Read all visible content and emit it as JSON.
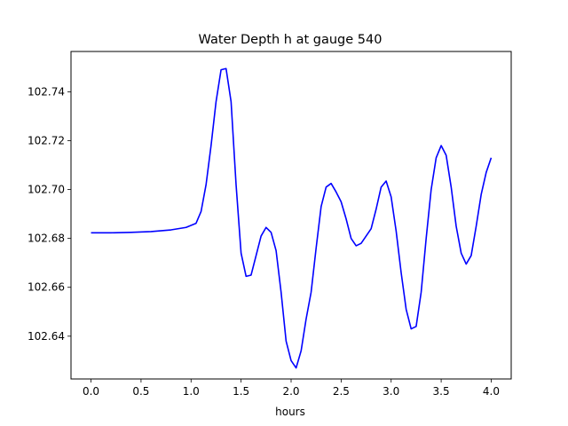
{
  "chart_data": {
    "type": "line",
    "title": "Water Depth h at gauge 540",
    "xlabel": "hours",
    "ylabel": "",
    "xlim": [
      -0.2,
      4.2
    ],
    "ylim": [
      102.6225,
      102.7565
    ],
    "x_ticks": [
      0.0,
      0.5,
      1.0,
      1.5,
      2.0,
      2.5,
      3.0,
      3.5,
      4.0
    ],
    "x_tick_labels": [
      "0.0",
      "0.5",
      "1.0",
      "1.5",
      "2.0",
      "2.5",
      "3.0",
      "3.5",
      "4.0"
    ],
    "y_ticks": [
      102.64,
      102.66,
      102.68,
      102.7,
      102.72,
      102.74
    ],
    "y_tick_labels": [
      "102.64",
      "102.66",
      "102.68",
      "102.70",
      "102.72",
      "102.74"
    ],
    "grid": false,
    "series": [
      {
        "color": "#0000ff",
        "x": [
          0.0,
          0.2,
          0.4,
          0.6,
          0.8,
          0.95,
          1.05,
          1.1,
          1.15,
          1.2,
          1.25,
          1.3,
          1.35,
          1.4,
          1.45,
          1.5,
          1.55,
          1.6,
          1.65,
          1.7,
          1.75,
          1.8,
          1.85,
          1.9,
          1.95,
          2.0,
          2.05,
          2.1,
          2.15,
          2.2,
          2.25,
          2.3,
          2.35,
          2.4,
          2.45,
          2.5,
          2.55,
          2.6,
          2.65,
          2.7,
          2.75,
          2.8,
          2.85,
          2.9,
          2.95,
          3.0,
          3.05,
          3.1,
          3.15,
          3.2,
          3.25,
          3.3,
          3.35,
          3.4,
          3.45,
          3.5,
          3.55,
          3.6,
          3.65,
          3.7,
          3.75,
          3.8,
          3.85,
          3.9,
          3.95,
          4.0
        ],
        "y": [
          102.6823,
          102.6823,
          102.6825,
          102.6828,
          102.6835,
          102.6845,
          102.6862,
          102.691,
          102.702,
          102.718,
          102.736,
          102.749,
          102.7495,
          102.736,
          102.702,
          102.674,
          102.6645,
          102.665,
          102.673,
          102.681,
          102.6845,
          102.6825,
          102.675,
          102.658,
          102.638,
          102.63,
          102.627,
          102.634,
          102.647,
          102.658,
          102.676,
          102.693,
          102.701,
          102.7025,
          102.699,
          102.695,
          102.688,
          102.68,
          102.677,
          102.678,
          102.681,
          102.684,
          102.692,
          102.701,
          102.7035,
          102.697,
          102.683,
          102.666,
          102.651,
          102.643,
          102.644,
          102.658,
          102.68,
          102.7,
          102.713,
          102.718,
          102.714,
          102.701,
          102.685,
          102.674,
          102.6695,
          102.673,
          102.685,
          102.698,
          102.707,
          102.713
        ]
      }
    ]
  }
}
